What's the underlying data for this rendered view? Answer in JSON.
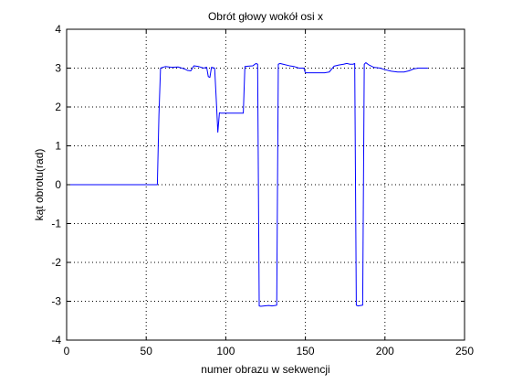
{
  "chart_data": {
    "type": "line",
    "title": "Obrót głowy wokół osi x",
    "xlabel": "numer obrazu w sekwencji",
    "ylabel": "kąt obrotu(rad)",
    "xlim": [
      0,
      250
    ],
    "ylim": [
      -4,
      4
    ],
    "xticks": [
      0,
      50,
      100,
      150,
      200,
      250
    ],
    "yticks": [
      -4,
      -3,
      -2,
      -1,
      0,
      1,
      2,
      3,
      4
    ],
    "grid": true,
    "grid_style": "dotted",
    "line_color": "#0000ff",
    "series": [
      {
        "x": [
          0,
          57,
          58,
          59,
          62,
          66,
          70,
          74,
          76,
          78,
          80,
          83,
          86,
          88,
          89,
          90,
          91,
          93,
          94,
          95,
          96,
          97,
          98,
          102,
          106,
          110,
          111,
          112,
          114,
          117,
          119,
          120,
          121,
          122,
          124,
          127,
          129,
          131,
          132,
          133,
          134,
          136,
          140,
          143,
          146,
          149,
          150,
          154,
          158,
          162,
          165,
          168,
          171,
          174,
          176,
          178,
          180,
          181,
          182,
          183,
          186,
          187,
          188,
          190,
          191,
          193,
          197,
          200,
          204,
          208,
          212,
          215,
          218,
          221,
          224,
          227
        ],
        "y": [
          0,
          0,
          1.8,
          3.0,
          3.04,
          3.02,
          3.03,
          2.98,
          2.94,
          2.93,
          3.06,
          3.04,
          3.0,
          3.02,
          2.78,
          2.76,
          3.02,
          3.0,
          2.2,
          1.35,
          1.85,
          1.84,
          1.84,
          1.84,
          1.84,
          1.84,
          1.84,
          3.04,
          3.05,
          3.06,
          3.12,
          3.1,
          -3.12,
          -3.13,
          -3.12,
          -3.11,
          -3.12,
          -3.11,
          -3.1,
          3.1,
          3.12,
          3.1,
          3.06,
          3.04,
          3.0,
          3.0,
          2.88,
          2.88,
          2.88,
          2.88,
          2.9,
          3.05,
          3.08,
          3.1,
          3.12,
          3.1,
          3.1,
          3.12,
          -3.1,
          -3.12,
          -3.1,
          3.1,
          3.14,
          3.08,
          3.06,
          3.02,
          3.0,
          2.96,
          2.92,
          2.9,
          2.9,
          2.93,
          2.98,
          3.0,
          3.0,
          3.0
        ]
      }
    ]
  }
}
